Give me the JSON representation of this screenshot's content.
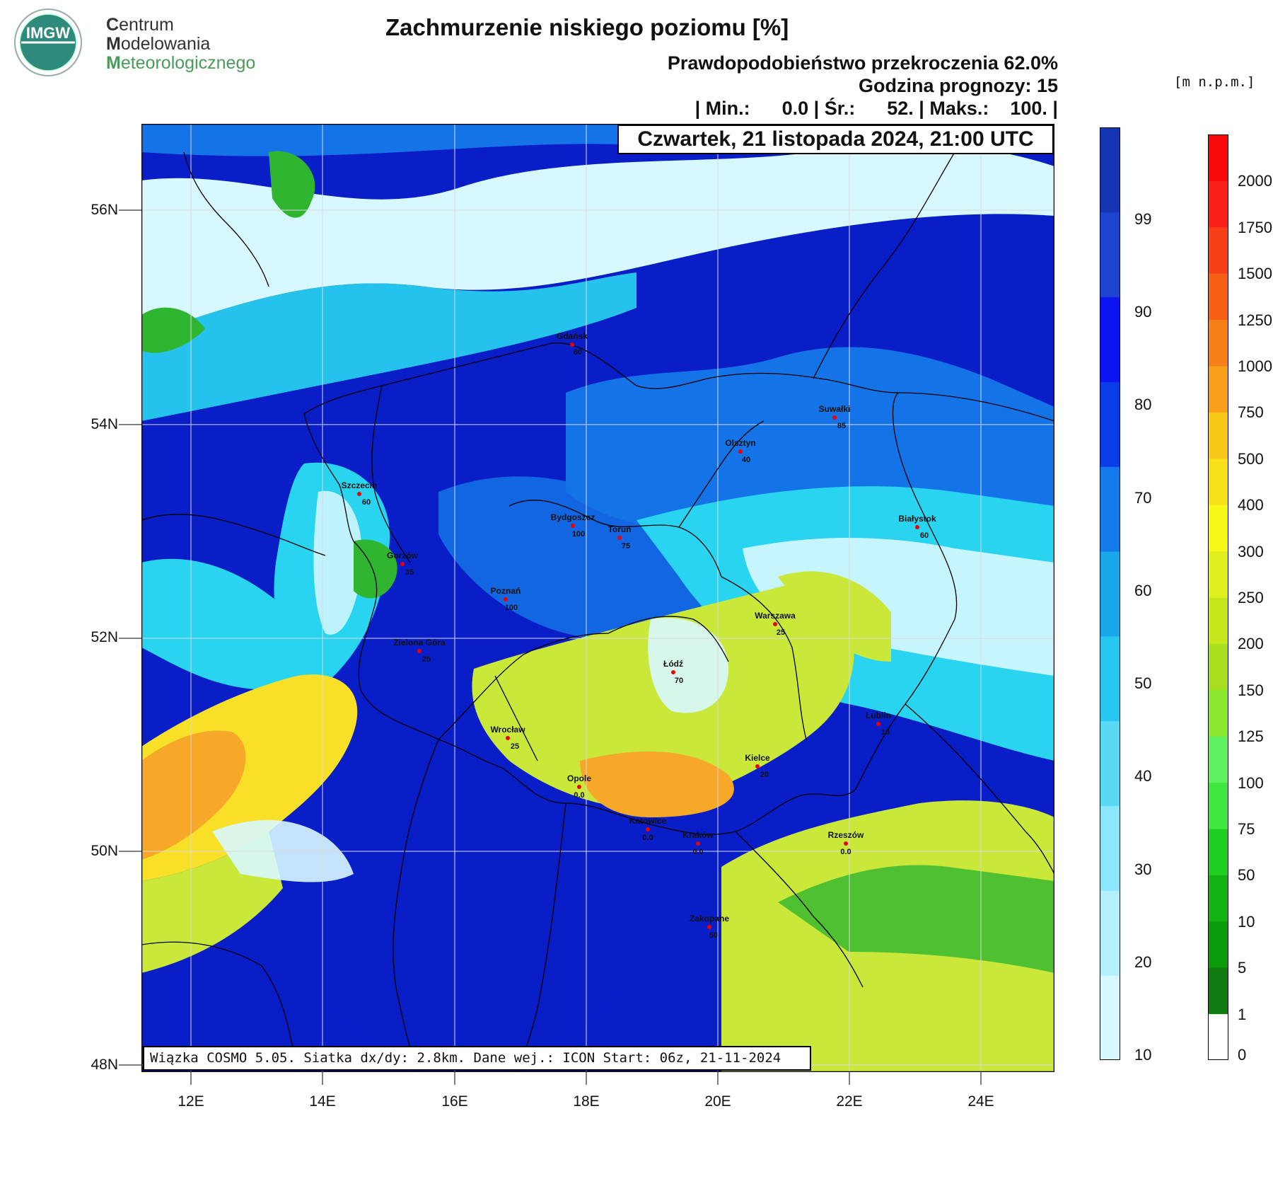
{
  "logo": {
    "badge_text": "IMGW",
    "line1_first": "C",
    "line1_rest": "entrum",
    "line2_first": "M",
    "line2_rest": "odelowania",
    "line3_first": "M",
    "line3_rest": "eteorologicznego"
  },
  "header": {
    "title": "Zachmurzenie niskiego poziomu [%]",
    "probability": "Prawdopodobieństwo przekroczenia 62.0%",
    "forecast_hour": "Godzina prognozy: 15",
    "stats": "| Min.:      0.0 | Śr.:      52. | Maks.:    100. |",
    "date": "Czwartek, 21 listopada 2024, 21:00 UTC",
    "unit": "[m n.p.m.]"
  },
  "footer": "Wiązka COSMO 5.05. Siatka dx/dy: 2.8km. Dane wej.: ICON Start: 06z, 21-11-2024",
  "axes": {
    "lat_labels": [
      "56N",
      "54N",
      "52N",
      "50N",
      "48N"
    ],
    "lon_labels": [
      "12E",
      "14E",
      "16E",
      "18E",
      "20E",
      "22E",
      "24E"
    ]
  },
  "cloud_scale": {
    "labels": [
      "10",
      "20",
      "30",
      "40",
      "50",
      "60",
      "70",
      "80",
      "90",
      "99"
    ],
    "colors": [
      "#d6f8ff",
      "#b4f0fc",
      "#8ae6fa",
      "#5ad9f5",
      "#25c6ef",
      "#1aa7ea",
      "#1479ea",
      "#0a3de8",
      "#0c14f0",
      "#1c44cf",
      "#1436b5"
    ]
  },
  "terrain_scale": {
    "labels": [
      "0",
      "1",
      "5",
      "10",
      "50",
      "75",
      "100",
      "125",
      "150",
      "200",
      "250",
      "300",
      "400",
      "500",
      "750",
      "1000",
      "1250",
      "1500",
      "1750",
      "2000"
    ],
    "colors": [
      "#ffffff",
      "#117a11",
      "#0a9a0a",
      "#12b312",
      "#1fcf1f",
      "#3ee83e",
      "#5ef05e",
      "#8ae82e",
      "#a8e01e",
      "#c8e81e",
      "#e0f01e",
      "#f8f818",
      "#f8e018",
      "#f8c818",
      "#f8a018",
      "#f88018",
      "#f86018",
      "#f84018",
      "#f82018",
      "#f80808"
    ]
  },
  "cities": [
    {
      "name": "Gdańsk",
      "value": "80"
    },
    {
      "name": "Suwałki",
      "value": "85"
    },
    {
      "name": "Olsztyn",
      "value": "40"
    },
    {
      "name": "Szczecin",
      "value": "60"
    },
    {
      "name": "Bydgoszcz",
      "value": "100"
    },
    {
      "name": "Toruń",
      "value": "75"
    },
    {
      "name": "Białystok",
      "value": "60"
    },
    {
      "name": "Gorzów",
      "value": "35"
    },
    {
      "name": "Poznań",
      "value": "100"
    },
    {
      "name": "Warszawa",
      "value": "25"
    },
    {
      "name": "Zielona Góra",
      "value": "25"
    },
    {
      "name": "Łódź",
      "value": "70"
    },
    {
      "name": "Lublin",
      "value": "10"
    },
    {
      "name": "Wrocław",
      "value": "25"
    },
    {
      "name": "Kielce",
      "value": "20"
    },
    {
      "name": "Opole",
      "value": "0.0"
    },
    {
      "name": "Katowice",
      "value": "0.0"
    },
    {
      "name": "Kraków",
      "value": "0.0"
    },
    {
      "name": "Rzeszów",
      "value": "0.0"
    },
    {
      "name": "Zakopane",
      "value": "50"
    }
  ],
  "colors": {
    "deep_blue": "#0a14c8",
    "mid_blue": "#1473e6",
    "cyan": "#28d4f0",
    "pale": "#d8f8ff",
    "green": "#2fb52f",
    "yellowgreen": "#c9e83a",
    "orange": "#f8a828"
  }
}
